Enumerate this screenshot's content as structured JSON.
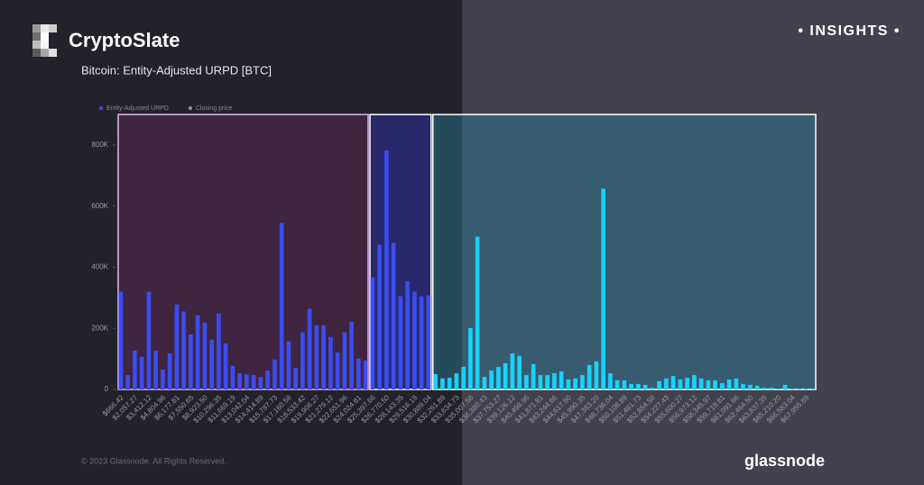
{
  "header": {
    "brand": "CryptoSlate",
    "badge": "• INSIGHTS •"
  },
  "footer": {
    "copyright": "© 2023 Glassnode. All Rights Reserved.",
    "source": "glassnode"
  },
  "chart_data": {
    "type": "bar",
    "title": "Bitcoin: Entity-Adjusted URPD [BTC]",
    "legend": [
      {
        "name": "Entity-Adjusted URPD",
        "color": "#3b4cf0"
      },
      {
        "name": "Closing price",
        "color": "#8a8a96"
      }
    ],
    "ylim": [
      0,
      900000
    ],
    "yticks": [
      0,
      {
        "value": 200000,
        "label": "200K"
      },
      {
        "value": 400000,
        "label": "400K"
      },
      {
        "value": 600000,
        "label": "600K"
      },
      {
        "value": 800000,
        "label": "800K"
      }
    ],
    "segments": [
      {
        "color": "#3b4cf0",
        "fill": "rgba(110,45,100,0.38)",
        "stroke": "#e2b8f2",
        "categories": [
          "$666.42",
          null,
          "$2,057.27",
          null,
          "$3,412.12",
          null,
          "$4,804.96",
          null,
          "$6,177.81",
          null,
          "$7,550.65",
          null,
          "$8,923.50",
          null,
          "$10,296.35",
          null,
          "$11,669.19",
          null,
          "$13,042.04",
          null,
          "$14,414.89",
          null,
          "$15,787.73",
          null,
          "$17,160.58",
          null,
          "$18,533.42",
          null,
          "$19,906.27",
          null,
          "$21,279.12",
          null,
          "$22,651.96",
          null,
          "$24,024.81",
          null
        ],
        "values": [
          320000,
          47000,
          127000,
          107000,
          320000,
          127000,
          65000,
          118000,
          278000,
          255000,
          180000,
          243000,
          219000,
          163000,
          249000,
          151000,
          77000,
          53000,
          50000,
          47000,
          41000,
          62000,
          98000,
          545000,
          157000,
          71000,
          187000,
          264000,
          210000,
          210000,
          172000,
          121000,
          187000,
          222000,
          101000,
          95000
        ]
      },
      {
        "color": "#3b4cf0",
        "fill": "rgba(45,45,150,0.6)",
        "stroke": "#ffffff",
        "categories": [
          "$25,397.66",
          null,
          "$26,770.50",
          null,
          "$28,143.35",
          null,
          "$29,516.19",
          null,
          "$30,889.04"
        ],
        "values": [
          367000,
          474000,
          782000,
          480000,
          305000,
          355000,
          320000,
          305000,
          308000
        ]
      },
      {
        "color": "#19d2fa",
        "fill": "rgba(40,130,160,0.42)",
        "stroke": "#ffffff",
        "categories": [
          null,
          "$32,261.89",
          null,
          "$33,634.73",
          null,
          "$35,007.58",
          null,
          "$36,380.43",
          null,
          "$37,753.27",
          null,
          "$39,126.12",
          null,
          "$40,498.96",
          null,
          "$41,871.81",
          null,
          "$43,244.66",
          null,
          "$44,617.50",
          null,
          "$45,990.35",
          null,
          "$47,363.20",
          null,
          "$48,736.04",
          null,
          "$50,108.89",
          null,
          "$51,481.73",
          null,
          "$52,854.58",
          null,
          "$54,227.43",
          null,
          "$55,600.27",
          null,
          "$56,973.12",
          null,
          "$58,345.97",
          null,
          "$59,718.81",
          null,
          "$61,091.66",
          null,
          "$62,464.50",
          null,
          "$63,837.35",
          null,
          "$65,210.20",
          null,
          "$66,583.04",
          null,
          "$67,955.89",
          null
        ],
        "values": [
          50000,
          36000,
          38000,
          53000,
          74000,
          201000,
          500000,
          41000,
          62000,
          74000,
          86000,
          118000,
          110000,
          47000,
          83000,
          47000,
          47000,
          53000,
          59000,
          33000,
          36000,
          47000,
          80000,
          92000,
          657000,
          53000,
          30000,
          30000,
          18000,
          18000,
          15000,
          6000,
          27000,
          36000,
          44000,
          33000,
          38000,
          47000,
          36000,
          30000,
          30000,
          21000,
          33000,
          36000,
          18000,
          15000,
          12000,
          6000,
          6000,
          3000,
          15000,
          3000,
          3000,
          3000,
          3000
        ]
      }
    ]
  }
}
